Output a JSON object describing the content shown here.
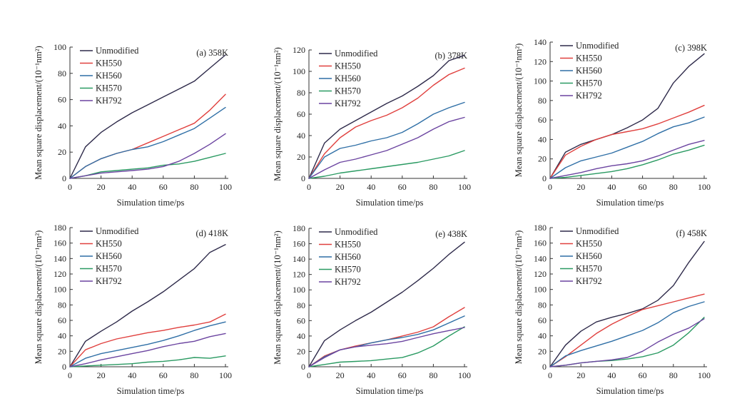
{
  "series_style": [
    {
      "key": "unmodified",
      "color": "#2e2a4a"
    },
    {
      "key": "kh550",
      "color": "#e0403e"
    },
    {
      "key": "kh560",
      "color": "#2f6fa6"
    },
    {
      "key": "kh570",
      "color": "#2a9a62"
    },
    {
      "key": "kh792",
      "color": "#6b44a0"
    }
  ],
  "chart_data": [
    {
      "type": "line",
      "title": "(a) 358K",
      "xlabel": "Simulation time/ps",
      "ylabel": "Mean square displacement/(10⁻¹nm²)",
      "xlim": [
        0,
        100
      ],
      "ylim": [
        0,
        100
      ],
      "xticks": [
        0,
        20,
        40,
        60,
        80,
        100
      ],
      "yticks": [
        0,
        20,
        40,
        60,
        80,
        100
      ],
      "x": [
        0,
        10,
        20,
        30,
        40,
        50,
        60,
        70,
        80,
        90,
        100
      ],
      "series": [
        {
          "name": "Unmodified",
          "values": [
            0,
            24,
            35,
            43,
            50,
            56,
            62,
            68,
            74,
            84,
            94
          ]
        },
        {
          "name": "KH550",
          "values": [
            0,
            9,
            15,
            19,
            22,
            27,
            32,
            37,
            42,
            52,
            64
          ]
        },
        {
          "name": "KH560",
          "values": [
            0,
            9,
            15,
            19,
            22,
            24,
            28,
            33,
            38,
            46,
            54
          ]
        },
        {
          "name": "KH570",
          "values": [
            0,
            2,
            5,
            6,
            7,
            8,
            10,
            11,
            13,
            16,
            19
          ]
        },
        {
          "name": "KH792",
          "values": [
            0,
            2,
            4,
            5,
            6,
            7,
            9,
            13,
            19,
            26,
            34
          ]
        }
      ]
    },
    {
      "type": "line",
      "title": "(b) 378K",
      "xlabel": "Simulation time/ps",
      "ylabel": "Mean square displacement/(10⁻¹nm²)",
      "xlim": [
        0,
        100
      ],
      "ylim": [
        0,
        120
      ],
      "xticks": [
        0,
        20,
        40,
        60,
        80,
        100
      ],
      "yticks": [
        0,
        20,
        40,
        60,
        80,
        100,
        120
      ],
      "x": [
        0,
        10,
        20,
        30,
        40,
        50,
        60,
        70,
        80,
        90,
        100
      ],
      "series": [
        {
          "name": "Unmodified",
          "values": [
            0,
            33,
            46,
            54,
            62,
            70,
            77,
            86,
            96,
            110,
            115
          ]
        },
        {
          "name": "KH550",
          "values": [
            0,
            23,
            38,
            48,
            54,
            59,
            66,
            75,
            87,
            97,
            103
          ]
        },
        {
          "name": "KH560",
          "values": [
            0,
            20,
            28,
            31,
            35,
            38,
            43,
            51,
            60,
            66,
            71
          ]
        },
        {
          "name": "KH570",
          "values": [
            0,
            2,
            5,
            7,
            9,
            11,
            13,
            15,
            18,
            21,
            26
          ]
        },
        {
          "name": "KH792",
          "values": [
            0,
            8,
            15,
            18,
            22,
            26,
            32,
            38,
            46,
            53,
            57
          ]
        }
      ]
    },
    {
      "type": "line",
      "title": "(c) 398K",
      "xlabel": "Simulation time/ps",
      "ylabel": "Mean square displacement/(10⁻¹nm²)",
      "xlim": [
        0,
        100
      ],
      "ylim": [
        0,
        140
      ],
      "xticks": [
        0,
        20,
        40,
        60,
        80,
        100
      ],
      "yticks": [
        0,
        20,
        40,
        60,
        80,
        100,
        120,
        140
      ],
      "x": [
        0,
        10,
        20,
        30,
        40,
        50,
        60,
        70,
        80,
        90,
        100
      ],
      "series": [
        {
          "name": "Unmodified",
          "values": [
            0,
            27,
            35,
            40,
            45,
            52,
            60,
            72,
            98,
            115,
            128
          ]
        },
        {
          "name": "KH550",
          "values": [
            0,
            24,
            33,
            40,
            45,
            48,
            51,
            56,
            62,
            68,
            75
          ]
        },
        {
          "name": "KH560",
          "values": [
            0,
            11,
            18,
            22,
            26,
            32,
            38,
            46,
            53,
            57,
            63
          ]
        },
        {
          "name": "KH570",
          "values": [
            0,
            1,
            3,
            5,
            7,
            10,
            14,
            19,
            25,
            29,
            34
          ]
        },
        {
          "name": "KH792",
          "values": [
            0,
            3,
            6,
            10,
            13,
            15,
            18,
            23,
            29,
            35,
            39
          ]
        }
      ]
    },
    {
      "type": "line",
      "title": "(d) 418K",
      "xlabel": "Simulation time/ps",
      "ylabel": "Mean square displacement/(10⁻¹nm²)",
      "xlim": [
        0,
        100
      ],
      "ylim": [
        0,
        180
      ],
      "xticks": [
        0,
        20,
        40,
        60,
        80,
        100
      ],
      "yticks": [
        0,
        20,
        40,
        60,
        80,
        100,
        120,
        140,
        160,
        180
      ],
      "x": [
        0,
        10,
        20,
        30,
        40,
        50,
        60,
        70,
        80,
        90,
        100
      ],
      "series": [
        {
          "name": "Unmodified",
          "values": [
            0,
            33,
            46,
            58,
            72,
            84,
            97,
            112,
            127,
            148,
            158
          ]
        },
        {
          "name": "KH550",
          "values": [
            0,
            22,
            30,
            36,
            40,
            44,
            47,
            51,
            54,
            58,
            68
          ]
        },
        {
          "name": "KH560",
          "values": [
            0,
            11,
            17,
            21,
            25,
            29,
            34,
            40,
            47,
            53,
            58
          ]
        },
        {
          "name": "KH570",
          "values": [
            0,
            1,
            2,
            3,
            4,
            6,
            7,
            9,
            12,
            11,
            14
          ]
        },
        {
          "name": "KH792",
          "values": [
            0,
            4,
            9,
            13,
            17,
            21,
            26,
            30,
            33,
            39,
            43
          ]
        }
      ]
    },
    {
      "type": "line",
      "title": "(e) 438K",
      "xlabel": "Simulation time/ps",
      "ylabel": "Mean square displacement/(10⁻¹nm²)",
      "xlim": [
        0,
        100
      ],
      "ylim": [
        0,
        180
      ],
      "xticks": [
        0,
        20,
        40,
        60,
        80,
        100
      ],
      "yticks": [
        0,
        20,
        40,
        60,
        80,
        100,
        120,
        140,
        160,
        180
      ],
      "x": [
        0,
        10,
        20,
        30,
        40,
        50,
        60,
        70,
        80,
        90,
        100
      ],
      "series": [
        {
          "name": "Unmodified",
          "values": [
            0,
            34,
            48,
            60,
            71,
            84,
            97,
            112,
            128,
            146,
            162
          ]
        },
        {
          "name": "KH550",
          "values": [
            0,
            14,
            22,
            27,
            31,
            35,
            40,
            45,
            52,
            65,
            77
          ]
        },
        {
          "name": "KH560",
          "values": [
            0,
            13,
            22,
            26,
            31,
            35,
            38,
            42,
            48,
            57,
            66
          ]
        },
        {
          "name": "KH570",
          "values": [
            0,
            3,
            6,
            7,
            8,
            10,
            12,
            18,
            27,
            40,
            52
          ]
        },
        {
          "name": "KH792",
          "values": [
            0,
            12,
            22,
            26,
            28,
            30,
            33,
            38,
            43,
            47,
            51
          ]
        }
      ]
    },
    {
      "type": "line",
      "title": "(f) 458K",
      "xlabel": "Simulation time/ps",
      "ylabel": "Mean square displacement/(10⁻¹nm²)",
      "xlim": [
        0,
        100
      ],
      "ylim": [
        0,
        180
      ],
      "xticks": [
        0,
        20,
        40,
        60,
        80,
        100
      ],
      "yticks": [
        0,
        20,
        40,
        60,
        80,
        100,
        120,
        140,
        160,
        180
      ],
      "x": [
        0,
        10,
        20,
        30,
        40,
        50,
        60,
        70,
        80,
        90,
        100
      ],
      "series": [
        {
          "name": "Unmodified",
          "values": [
            0,
            28,
            46,
            58,
            64,
            69,
            75,
            86,
            105,
            135,
            162
          ]
        },
        {
          "name": "KH550",
          "values": [
            0,
            13,
            28,
            43,
            55,
            65,
            74,
            79,
            84,
            89,
            94
          ]
        },
        {
          "name": "KH560",
          "values": [
            0,
            14,
            21,
            27,
            33,
            40,
            47,
            57,
            70,
            78,
            84
          ]
        },
        {
          "name": "KH570",
          "values": [
            0,
            2,
            5,
            7,
            8,
            10,
            13,
            18,
            28,
            44,
            64
          ]
        },
        {
          "name": "KH792",
          "values": [
            0,
            2,
            5,
            7,
            9,
            12,
            20,
            32,
            42,
            50,
            62
          ]
        }
      ]
    }
  ]
}
